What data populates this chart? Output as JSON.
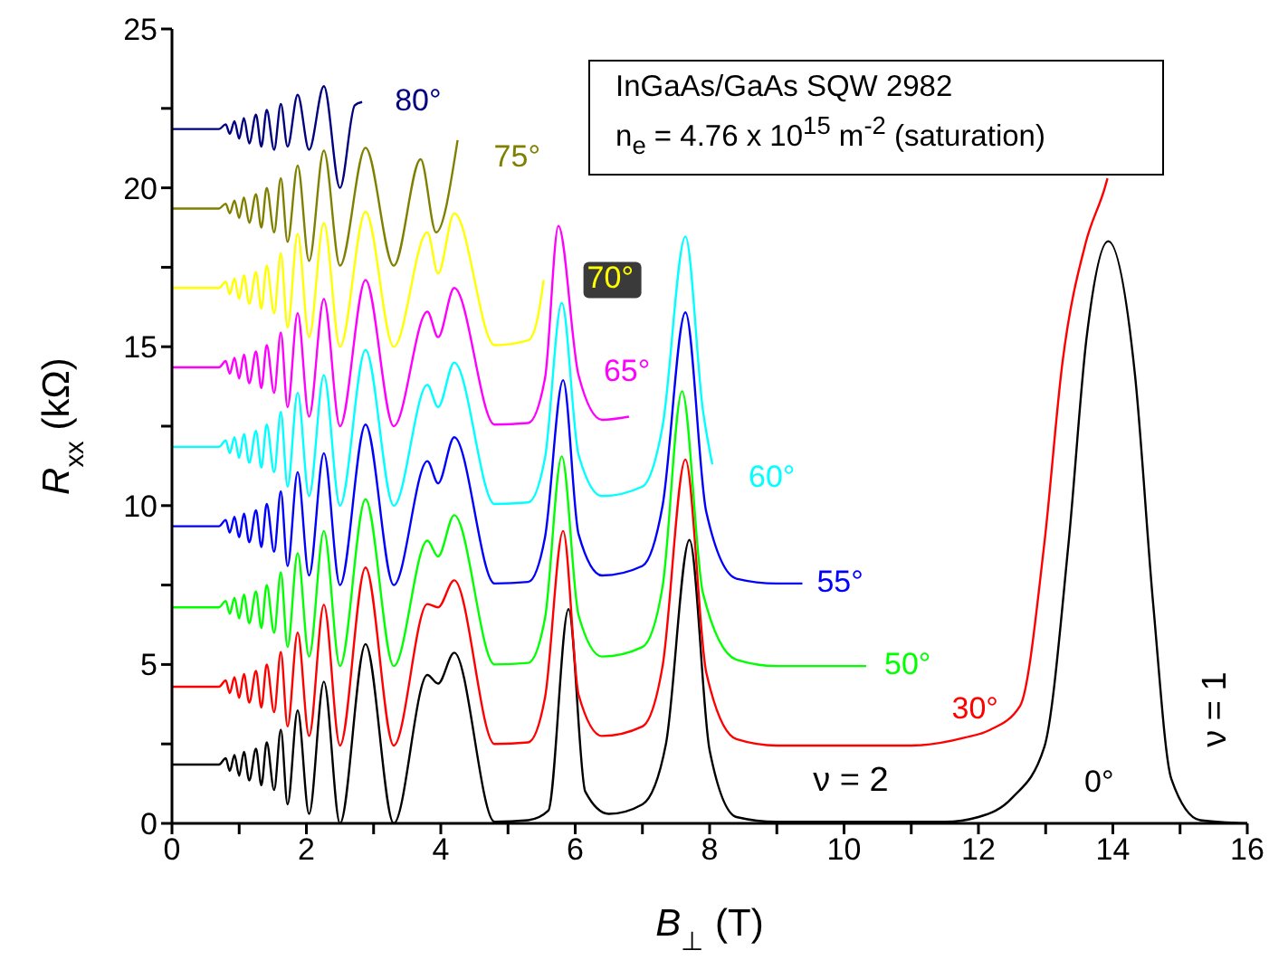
{
  "chart_data": {
    "type": "line",
    "xlabel": "B$_{⊥}$ (T)",
    "ylabel": "R$_{xx}$ (kΩ)",
    "xlim": [
      0,
      16
    ],
    "xticks": [
      0,
      {
        "value": 1,
        "label": null
      },
      2,
      {
        "value": 3,
        "label": null
      },
      4,
      {
        "value": 5,
        "label": null
      },
      6,
      {
        "value": 7,
        "label": null
      },
      8,
      {
        "value": 9,
        "label": null
      },
      10,
      {
        "value": 11,
        "label": null
      },
      12,
      {
        "value": 13,
        "label": null
      },
      14,
      {
        "value": 15,
        "label": null
      },
      16
    ],
    "ylim": [
      0,
      25
    ],
    "yticks": [
      0,
      {
        "value": 2.5,
        "label": null
      },
      5,
      {
        "value": 7.5,
        "label": null
      },
      10,
      {
        "value": 12.5,
        "label": null
      },
      15,
      {
        "value": 17.5,
        "label": null
      },
      20,
      {
        "value": 22.5,
        "label": null
      },
      25
    ],
    "marker": "none",
    "line_style": "solid",
    "annotations": [
      "InGaAs/GaAs SQW 2982",
      "n$_{e}$ = 4.76 x 10$^{15}$ m$^{-2}$ (saturation)",
      "ν = 2",
      "ν = 1"
    ],
    "series": [
      {
        "name": "0°",
        "color": "#000000",
        "x": [
          0,
          0.7,
          0.8,
          0.86,
          0.93,
          1.0,
          1.07,
          1.15,
          1.25,
          1.33,
          1.41,
          1.52,
          1.62,
          1.72,
          1.87,
          2.04,
          2.26,
          2.5,
          2.88,
          3.3,
          3.8,
          3.96,
          4.2,
          4.8,
          5.3,
          5.6,
          5.9,
          6.15,
          6.5,
          7.0,
          7.35,
          7.7,
          8.0,
          8.4,
          9.0,
          11.5,
          12.0,
          12.5,
          12.98,
          13.34,
          13.61,
          13.93,
          14.33,
          14.6,
          14.87,
          15.3,
          16
        ],
        "values": [
          1.85,
          1.85,
          2.05,
          1.65,
          2.15,
          1.5,
          2.25,
          1.35,
          2.35,
          1.2,
          2.55,
          1.05,
          2.95,
          0.6,
          3.55,
          0.3,
          4.46,
          0,
          5.64,
          0,
          4.67,
          4.4,
          5.37,
          0.05,
          0.1,
          0.4,
          6.74,
          1.0,
          0.3,
          0.6,
          2.5,
          8.92,
          2.3,
          0.2,
          0.05,
          0.05,
          0.2,
          0.8,
          2.4,
          8.8,
          15.3,
          18.32,
          14.1,
          6.9,
          1.4,
          0.1,
          0
        ]
      },
      {
        "name": "30°",
        "color": "#ff0000",
        "x": [
          0,
          0.7,
          0.8,
          0.86,
          0.93,
          1.0,
          1.07,
          1.15,
          1.25,
          1.33,
          1.41,
          1.52,
          1.62,
          1.72,
          1.87,
          2.04,
          2.26,
          2.5,
          2.88,
          3.3,
          3.8,
          3.96,
          4.2,
          4.8,
          5.3,
          5.55,
          5.82,
          6.05,
          6.4,
          7.0,
          7.3,
          7.64,
          7.95,
          8.4,
          9.0,
          11.0,
          11.8,
          12.17,
          12.62,
          12.98,
          13.25,
          13.6,
          13.88,
          13.92
        ],
        "values": [
          4.3,
          4.3,
          4.5,
          4.1,
          4.6,
          3.95,
          4.7,
          3.8,
          4.8,
          3.65,
          5.0,
          3.5,
          5.4,
          3.05,
          6.0,
          2.75,
          6.88,
          2.45,
          8.05,
          2.45,
          6.9,
          6.8,
          7.65,
          2.5,
          2.55,
          3.95,
          9.2,
          4.05,
          2.75,
          3.05,
          4.95,
          11.45,
          4.75,
          2.65,
          2.45,
          2.45,
          2.7,
          2.94,
          3.7,
          8.8,
          14.5,
          18.3,
          20.0,
          20.3
        ]
      },
      {
        "name": "50°",
        "color": "#00ff00",
        "x": [
          0,
          0.7,
          0.8,
          0.86,
          0.93,
          1.0,
          1.07,
          1.15,
          1.25,
          1.33,
          1.41,
          1.52,
          1.62,
          1.72,
          1.87,
          2.04,
          2.26,
          2.5,
          2.88,
          3.3,
          3.8,
          3.96,
          4.2,
          4.8,
          5.3,
          5.55,
          5.8,
          6.05,
          6.4,
          7.0,
          7.3,
          7.59,
          7.9,
          8.4,
          9.0,
          10.33
        ],
        "values": [
          6.8,
          6.8,
          7.0,
          6.6,
          7.1,
          6.45,
          7.2,
          6.3,
          7.3,
          6.15,
          7.5,
          6.0,
          7.9,
          5.55,
          8.5,
          5.25,
          9.2,
          4.95,
          10.2,
          4.95,
          8.9,
          8.4,
          9.7,
          5.0,
          5.05,
          6.45,
          11.55,
          6.55,
          5.25,
          5.55,
          7.45,
          13.6,
          7.25,
          5.15,
          4.95,
          4.95
        ]
      },
      {
        "name": "55°",
        "color": "#0000ff",
        "x": [
          0,
          0.7,
          0.8,
          0.86,
          0.93,
          1.0,
          1.07,
          1.15,
          1.25,
          1.33,
          1.41,
          1.52,
          1.62,
          1.72,
          1.87,
          2.04,
          2.26,
          2.5,
          2.88,
          3.3,
          3.8,
          3.96,
          4.2,
          4.8,
          5.3,
          5.55,
          5.82,
          6.05,
          6.4,
          7.0,
          7.3,
          7.64,
          7.95,
          8.4,
          9.0,
          9.38
        ],
        "values": [
          9.35,
          9.35,
          9.55,
          9.15,
          9.65,
          9.0,
          9.75,
          8.85,
          9.85,
          8.7,
          10.05,
          8.55,
          10.45,
          8.1,
          11.05,
          7.8,
          11.65,
          7.5,
          12.55,
          7.5,
          11.4,
          10.7,
          12.15,
          7.55,
          7.6,
          9.0,
          13.95,
          9.1,
          7.8,
          8.1,
          10.0,
          16.08,
          9.8,
          7.7,
          7.55,
          7.55
        ]
      },
      {
        "name": "60°",
        "color": "#00ffff",
        "x": [
          0,
          0.7,
          0.8,
          0.86,
          0.93,
          1.0,
          1.07,
          1.15,
          1.25,
          1.33,
          1.41,
          1.52,
          1.62,
          1.72,
          1.87,
          2.04,
          2.26,
          2.5,
          2.88,
          3.3,
          3.8,
          3.96,
          4.2,
          4.8,
          5.3,
          5.55,
          5.8,
          6.05,
          6.4,
          7.0,
          7.3,
          7.64,
          7.9,
          8.04
        ],
        "values": [
          11.85,
          11.85,
          12.05,
          11.65,
          12.15,
          11.5,
          12.25,
          11.35,
          12.35,
          11.2,
          12.55,
          11.05,
          12.95,
          10.6,
          13.55,
          10.3,
          14.1,
          10,
          14.9,
          10,
          13.8,
          13.1,
          14.5,
          10.05,
          10.1,
          11.5,
          16.38,
          11.6,
          10.3,
          10.6,
          12.5,
          18.47,
          13.0,
          11.3
        ]
      },
      {
        "name": "65°",
        "color": "#ff00ff",
        "x": [
          0,
          0.7,
          0.8,
          0.86,
          0.93,
          1.0,
          1.07,
          1.15,
          1.25,
          1.33,
          1.41,
          1.52,
          1.62,
          1.72,
          1.87,
          2.04,
          2.26,
          2.5,
          2.88,
          3.3,
          3.8,
          3.96,
          4.2,
          4.8,
          5.3,
          5.55,
          5.75,
          6.05,
          6.4,
          6.8
        ],
        "values": [
          14.35,
          14.35,
          14.55,
          14.15,
          14.65,
          14.0,
          14.75,
          13.85,
          14.85,
          13.7,
          15.05,
          13.55,
          15.45,
          13.1,
          16.05,
          12.8,
          16.5,
          12.5,
          17.1,
          12.5,
          16.1,
          15.3,
          16.85,
          12.55,
          12.6,
          14.0,
          18.8,
          14.1,
          12.7,
          12.8
        ]
      },
      {
        "name": "70°",
        "color": "#ffff00",
        "x": [
          0,
          0.7,
          0.8,
          0.86,
          0.93,
          1.0,
          1.07,
          1.15,
          1.25,
          1.33,
          1.41,
          1.52,
          1.62,
          1.72,
          1.87,
          2.04,
          2.26,
          2.5,
          2.88,
          3.3,
          3.8,
          3.96,
          4.2,
          4.8,
          5.3,
          5.45,
          5.53
        ],
        "values": [
          16.85,
          16.85,
          17.05,
          16.65,
          17.15,
          16.5,
          17.25,
          16.35,
          17.35,
          16.2,
          17.55,
          16.05,
          17.95,
          15.6,
          18.55,
          15.3,
          18.9,
          15,
          19.25,
          15,
          18.6,
          17.3,
          19.2,
          15.05,
          15.2,
          16.0,
          17.1
        ]
      },
      {
        "name": "75°",
        "color": "#808000",
        "x": [
          0,
          0.7,
          0.8,
          0.86,
          0.93,
          1.0,
          1.07,
          1.15,
          1.25,
          1.33,
          1.41,
          1.52,
          1.62,
          1.72,
          1.87,
          2.04,
          2.26,
          2.5,
          2.88,
          3.3,
          3.7,
          3.93,
          4.25
        ],
        "values": [
          19.35,
          19.35,
          19.5,
          19.2,
          19.6,
          19.05,
          19.7,
          18.9,
          19.8,
          18.75,
          20.0,
          18.6,
          20.3,
          18.3,
          20.7,
          17.7,
          21.17,
          17.55,
          21.26,
          17.55,
          20.9,
          18.6,
          21.5
        ]
      },
      {
        "name": "80°",
        "color": "#000080",
        "x": [
          0,
          0.7,
          0.8,
          0.86,
          0.93,
          1.0,
          1.07,
          1.15,
          1.25,
          1.33,
          1.41,
          1.52,
          1.62,
          1.72,
          1.87,
          2.04,
          2.26,
          2.5,
          2.72,
          2.83
        ],
        "values": [
          21.85,
          21.85,
          22.0,
          21.7,
          22.1,
          21.55,
          22.2,
          21.4,
          22.3,
          21.3,
          22.45,
          21.2,
          22.64,
          21.3,
          22.93,
          21.2,
          23.2,
          20.0,
          22.6,
          22.7
        ]
      }
    ]
  }
}
